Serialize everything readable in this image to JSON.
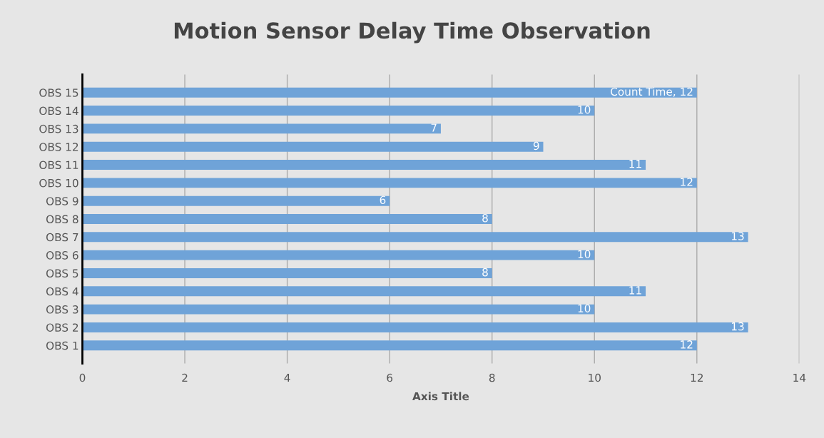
{
  "chart_data": {
    "type": "bar",
    "orientation": "horizontal",
    "title": "Motion Sensor Delay Time Observation",
    "xlabel": "Axis Title",
    "categories": [
      "OBS 15",
      "OBS 14",
      "OBS 13",
      "OBS 12",
      "OBS 11",
      "OBS 10",
      "OBS 9",
      "OBS 8",
      "OBS 7",
      "OBS 6",
      "OBS 5",
      "OBS 4",
      "OBS 3",
      "OBS 2",
      "OBS 1"
    ],
    "values": [
      12,
      10,
      7,
      9,
      11,
      12,
      6,
      8,
      13,
      10,
      8,
      11,
      10,
      13,
      12
    ],
    "value_labels": [
      "Count Time, 12",
      "10",
      "7",
      "9",
      "11",
      "12",
      "6",
      "8",
      "13",
      "10",
      "8",
      "11",
      "10",
      "13",
      "12"
    ],
    "color": "#6fa3d8",
    "xlim": [
      0,
      14
    ],
    "xticks": [
      0,
      2,
      4,
      6,
      8,
      10,
      12,
      14
    ],
    "grid": "x"
  }
}
